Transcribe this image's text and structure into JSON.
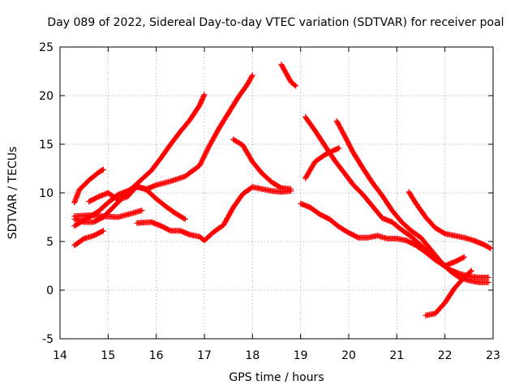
{
  "chart_data": {
    "type": "scatter",
    "title": "Day 089 of 2022, Sidereal Day-to-day VTEC variation (SDTVAR) for receiver poal",
    "xlabel": "GPS time / hours",
    "ylabel": "SDTVAR / TECUs",
    "xlim": [
      14,
      23
    ],
    "ylim": [
      -5,
      25
    ],
    "x_ticks": [
      14,
      15,
      16,
      17,
      18,
      19,
      20,
      21,
      22,
      23
    ],
    "y_ticks": [
      -5,
      0,
      5,
      10,
      15,
      20,
      25
    ],
    "x_tick_labels": [
      "14",
      "15",
      "16",
      "17",
      "18",
      "19",
      "20",
      "21",
      "22",
      "23"
    ],
    "y_tick_labels": [
      "-5",
      "0",
      "5",
      "10",
      "15",
      "20",
      "25"
    ],
    "grid": true,
    "marker": "+",
    "color": "#ff0000",
    "series": [
      {
        "name": "s1",
        "points": [
          [
            14.3,
            9.0
          ],
          [
            14.4,
            10.3
          ],
          [
            14.6,
            11.3
          ],
          [
            14.8,
            12.1
          ],
          [
            14.9,
            12.4
          ]
        ]
      },
      {
        "name": "s2",
        "points": [
          [
            14.3,
            4.6
          ],
          [
            14.5,
            5.3
          ],
          [
            14.7,
            5.6
          ],
          [
            14.9,
            6.1
          ]
        ]
      },
      {
        "name": "s3",
        "points": [
          [
            14.3,
            7.6
          ],
          [
            14.6,
            7.7
          ],
          [
            14.9,
            7.6
          ],
          [
            15.2,
            7.5
          ],
          [
            15.5,
            7.9
          ],
          [
            15.7,
            8.2
          ]
        ]
      },
      {
        "name": "s4",
        "points": [
          [
            14.3,
            6.6
          ],
          [
            14.5,
            7.2
          ],
          [
            14.8,
            8.1
          ],
          [
            15.0,
            9.0
          ],
          [
            15.2,
            9.8
          ],
          [
            15.4,
            10.2
          ],
          [
            15.6,
            10.6
          ],
          [
            15.8,
            10.4
          ],
          [
            16.0,
            10.8
          ],
          [
            16.3,
            11.2
          ],
          [
            16.6,
            11.7
          ],
          [
            16.9,
            12.8
          ],
          [
            17.1,
            14.8
          ],
          [
            17.3,
            16.6
          ],
          [
            17.5,
            18.2
          ],
          [
            17.7,
            19.8
          ],
          [
            17.9,
            21.2
          ],
          [
            18.0,
            22.1
          ]
        ]
      },
      {
        "name": "s5",
        "points": [
          [
            14.3,
            7.3
          ],
          [
            14.5,
            7.0
          ],
          [
            14.7,
            7.0
          ],
          [
            14.9,
            7.5
          ],
          [
            15.1,
            8.5
          ],
          [
            15.3,
            9.5
          ],
          [
            15.5,
            10.5
          ],
          [
            15.7,
            11.4
          ],
          [
            15.9,
            12.3
          ],
          [
            16.1,
            13.6
          ],
          [
            16.3,
            15.0
          ],
          [
            16.5,
            16.3
          ],
          [
            16.7,
            17.5
          ],
          [
            16.9,
            19.0
          ],
          [
            17.0,
            20.1
          ]
        ]
      },
      {
        "name": "s6",
        "points": [
          [
            14.6,
            9.1
          ],
          [
            14.8,
            9.6
          ],
          [
            15.0,
            10.0
          ],
          [
            15.2,
            9.3
          ],
          [
            15.4,
            9.6
          ],
          [
            15.6,
            10.7
          ],
          [
            15.8,
            10.3
          ],
          [
            16.0,
            9.4
          ],
          [
            16.2,
            8.6
          ],
          [
            16.4,
            7.9
          ],
          [
            16.6,
            7.3
          ]
        ]
      },
      {
        "name": "s7",
        "points": [
          [
            15.6,
            6.9
          ],
          [
            15.9,
            7.0
          ],
          [
            16.1,
            6.6
          ],
          [
            16.3,
            6.1
          ],
          [
            16.5,
            6.1
          ],
          [
            16.7,
            5.7
          ],
          [
            16.9,
            5.5
          ],
          [
            17.0,
            5.1
          ],
          [
            17.2,
            6.0
          ],
          [
            17.4,
            6.7
          ],
          [
            17.6,
            8.5
          ],
          [
            17.8,
            9.9
          ],
          [
            18.0,
            10.6
          ],
          [
            18.2,
            10.4
          ],
          [
            18.4,
            10.2
          ],
          [
            18.6,
            10.1
          ],
          [
            18.8,
            10.2
          ]
        ]
      },
      {
        "name": "s8",
        "points": [
          [
            17.6,
            15.5
          ],
          [
            17.8,
            14.9
          ],
          [
            18.0,
            13.2
          ],
          [
            18.2,
            12.0
          ],
          [
            18.4,
            11.1
          ],
          [
            18.6,
            10.5
          ],
          [
            18.8,
            10.4
          ]
        ]
      },
      {
        "name": "s9",
        "points": [
          [
            18.6,
            23.2
          ],
          [
            18.7,
            22.3
          ],
          [
            18.8,
            21.4
          ],
          [
            18.9,
            21.0
          ]
        ]
      },
      {
        "name": "s10",
        "points": [
          [
            19.1,
            11.5
          ],
          [
            19.3,
            13.2
          ],
          [
            19.5,
            13.9
          ],
          [
            19.7,
            14.4
          ],
          [
            19.8,
            14.6
          ]
        ]
      },
      {
        "name": "s11",
        "points": [
          [
            19.1,
            17.8
          ],
          [
            19.3,
            16.4
          ],
          [
            19.5,
            14.9
          ],
          [
            19.7,
            13.4
          ],
          [
            19.9,
            12.1
          ],
          [
            20.1,
            10.8
          ],
          [
            20.3,
            9.8
          ],
          [
            20.5,
            8.6
          ],
          [
            20.7,
            7.4
          ],
          [
            20.9,
            7.0
          ],
          [
            21.1,
            6.2
          ],
          [
            21.3,
            5.5
          ],
          [
            21.5,
            4.6
          ],
          [
            21.7,
            3.7
          ],
          [
            21.9,
            2.8
          ],
          [
            22.1,
            2.1
          ],
          [
            22.3,
            1.7
          ],
          [
            22.5,
            1.4
          ],
          [
            22.7,
            1.3
          ],
          [
            22.9,
            1.3
          ]
        ]
      },
      {
        "name": "s12",
        "points": [
          [
            19.0,
            8.9
          ],
          [
            19.2,
            8.5
          ],
          [
            19.4,
            7.8
          ],
          [
            19.6,
            7.3
          ],
          [
            19.8,
            6.5
          ],
          [
            20.0,
            5.9
          ],
          [
            20.2,
            5.4
          ],
          [
            20.4,
            5.4
          ],
          [
            20.6,
            5.6
          ],
          [
            20.8,
            5.3
          ],
          [
            21.0,
            5.3
          ],
          [
            21.2,
            5.1
          ],
          [
            21.4,
            4.6
          ],
          [
            21.6,
            3.9
          ],
          [
            21.8,
            3.1
          ],
          [
            22.0,
            2.5
          ],
          [
            22.2,
            2.9
          ],
          [
            22.4,
            3.4
          ]
        ]
      },
      {
        "name": "s13",
        "points": [
          [
            19.75,
            17.4
          ],
          [
            19.9,
            16.0
          ],
          [
            20.1,
            14.1
          ],
          [
            20.3,
            12.5
          ],
          [
            20.5,
            11.0
          ],
          [
            20.7,
            9.7
          ],
          [
            20.9,
            8.2
          ],
          [
            21.1,
            7.0
          ],
          [
            21.3,
            6.1
          ],
          [
            21.5,
            5.4
          ],
          [
            21.7,
            4.2
          ],
          [
            21.9,
            3.0
          ],
          [
            22.1,
            2.0
          ],
          [
            22.3,
            1.3
          ],
          [
            22.5,
            1.0
          ],
          [
            22.7,
            0.8
          ],
          [
            22.9,
            0.8
          ]
        ]
      },
      {
        "name": "s14",
        "points": [
          [
            21.25,
            10.1
          ],
          [
            21.4,
            8.9
          ],
          [
            21.6,
            7.5
          ],
          [
            21.8,
            6.4
          ],
          [
            22.0,
            5.8
          ],
          [
            22.2,
            5.6
          ],
          [
            22.4,
            5.4
          ],
          [
            22.6,
            5.1
          ],
          [
            22.8,
            4.7
          ],
          [
            22.95,
            4.3
          ]
        ]
      },
      {
        "name": "s15",
        "points": [
          [
            21.6,
            -2.6
          ],
          [
            21.8,
            -2.4
          ],
          [
            22.0,
            -1.3
          ],
          [
            22.2,
            0.2
          ],
          [
            22.4,
            1.3
          ],
          [
            22.55,
            2.0
          ]
        ]
      }
    ]
  }
}
